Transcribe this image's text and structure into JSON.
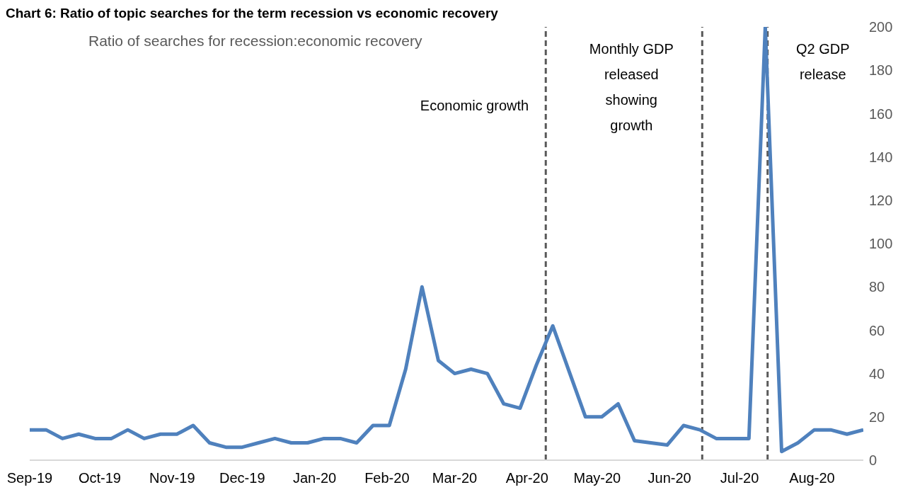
{
  "chart_data": {
    "type": "line",
    "title": "Chart 6: Ratio of topic searches for the term recession vs economic recovery",
    "subtitle": "Ratio of searches for recession:economic recovery",
    "x": [
      "2019-09-01",
      "2019-09-08",
      "2019-09-15",
      "2019-09-22",
      "2019-09-29",
      "2019-10-06",
      "2019-10-13",
      "2019-10-20",
      "2019-10-27",
      "2019-11-03",
      "2019-11-10",
      "2019-11-17",
      "2019-11-24",
      "2019-12-01",
      "2019-12-08",
      "2019-12-15",
      "2019-12-22",
      "2019-12-29",
      "2020-01-05",
      "2020-01-12",
      "2020-01-19",
      "2020-01-26",
      "2020-02-02",
      "2020-02-09",
      "2020-02-16",
      "2020-02-23",
      "2020-03-01",
      "2020-03-08",
      "2020-03-15",
      "2020-03-22",
      "2020-03-29",
      "2020-04-05",
      "2020-04-12",
      "2020-04-19",
      "2020-04-26",
      "2020-05-03",
      "2020-05-10",
      "2020-05-17",
      "2020-05-24",
      "2020-05-31",
      "2020-06-07",
      "2020-06-14",
      "2020-06-21",
      "2020-06-28",
      "2020-07-05",
      "2020-07-12",
      "2020-07-19",
      "2020-07-26",
      "2020-08-02",
      "2020-08-09",
      "2020-08-16",
      "2020-08-23"
    ],
    "series": [
      {
        "color": "#4f81bd",
        "values": [
          14,
          14,
          10,
          12,
          10,
          10,
          14,
          10,
          12,
          12,
          16,
          8,
          6,
          6,
          8,
          10,
          8,
          8,
          10,
          10,
          8,
          16,
          16,
          42,
          80,
          46,
          40,
          42,
          40,
          26,
          24,
          44,
          62,
          41,
          20,
          20,
          26,
          9,
          8,
          7,
          16,
          14,
          10,
          10,
          10,
          200,
          4,
          8,
          14,
          14,
          12,
          14
        ]
      }
    ],
    "xlim": [
      "2019-09-01",
      "2020-08-23"
    ],
    "xticks": [
      {
        "value": "2019-09-01",
        "label": "Sep-19"
      },
      {
        "value": "2019-10-01",
        "label": "Oct-19"
      },
      {
        "value": "2019-11-01",
        "label": "Nov-19"
      },
      {
        "value": "2019-12-01",
        "label": "Dec-19"
      },
      {
        "value": "2020-01-01",
        "label": "Jan-20"
      },
      {
        "value": "2020-02-01",
        "label": "Feb-20"
      },
      {
        "value": "2020-03-01",
        "label": "Mar-20"
      },
      {
        "value": "2020-04-01",
        "label": "Apr-20"
      },
      {
        "value": "2020-05-01",
        "label": "May-20"
      },
      {
        "value": "2020-06-01",
        "label": "Jun-20"
      },
      {
        "value": "2020-07-01",
        "label": "Jul-20"
      },
      {
        "value": "2020-08-01",
        "label": "Aug-20"
      }
    ],
    "ylim": [
      0,
      200
    ],
    "yticks": [
      0,
      20,
      40,
      60,
      80,
      100,
      120,
      140,
      160,
      180,
      200
    ],
    "ref_lines": [
      {
        "axis": "x",
        "value": "2020-04-09",
        "label": "Economic growth",
        "color": "#595959",
        "line_style": "dashed"
      },
      {
        "axis": "x",
        "value": "2020-06-15",
        "label": "Monthly GDP released showing growth",
        "color": "#595959",
        "line_style": "dashed"
      },
      {
        "axis": "x",
        "value": "2020-07-13",
        "label": "Q2 GDP release",
        "color": "#595959",
        "line_style": "dashed"
      }
    ],
    "grid": false,
    "legend": false,
    "marker": "none",
    "line_style": "solid"
  }
}
